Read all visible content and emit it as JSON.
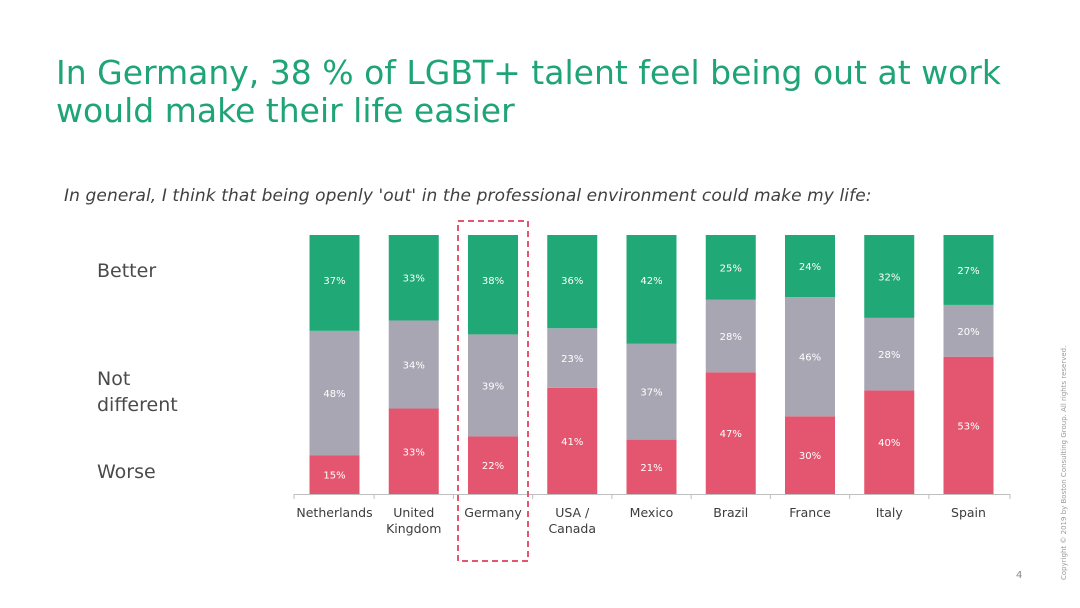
{
  "slide": {
    "title": "In Germany, 38 % of LGBT+ talent feel being out at work would make their life easier",
    "question": "In general, I think that being openly 'out' in the professional environment could make my life:",
    "copyright": "Copyright © 2019 by Boston Consulting Group. All rights reserved.",
    "page_number": "4"
  },
  "chart_data": {
    "type": "bar",
    "stacked": true,
    "normalized": true,
    "title": "",
    "xlabel": "",
    "ylabel": "",
    "categories": [
      "Netherlands",
      "United Kingdom",
      "Germany",
      "USA / Canada",
      "Mexico",
      "Brazil",
      "France",
      "Italy",
      "Spain"
    ],
    "category_label_lines": [
      [
        "Netherlands"
      ],
      [
        "United",
        "Kingdom"
      ],
      [
        "Germany"
      ],
      [
        "USA /",
        "Canada"
      ],
      [
        "Mexico"
      ],
      [
        "Brazil"
      ],
      [
        "France"
      ],
      [
        "Italy"
      ],
      [
        "Spain"
      ]
    ],
    "series": [
      {
        "name": "Worse",
        "color": "#e4566f",
        "values": [
          15,
          33,
          22,
          41,
          21,
          47,
          30,
          40,
          53
        ]
      },
      {
        "name": "Not different",
        "color": "#a8a6b2",
        "values": [
          48,
          34,
          39,
          23,
          37,
          28,
          46,
          28,
          20
        ]
      },
      {
        "name": "Better",
        "color": "#20a876",
        "values": [
          37,
          33,
          38,
          36,
          42,
          25,
          24,
          32,
          27
        ]
      }
    ],
    "value_suffix": "%",
    "highlight_category": "Germany",
    "highlight_color": "#e4566f",
    "label_color": "#ffffff",
    "axis_line_color": "#bfbfbf",
    "axis_label_color": "#3c3c3c",
    "legend_placement": "left"
  }
}
